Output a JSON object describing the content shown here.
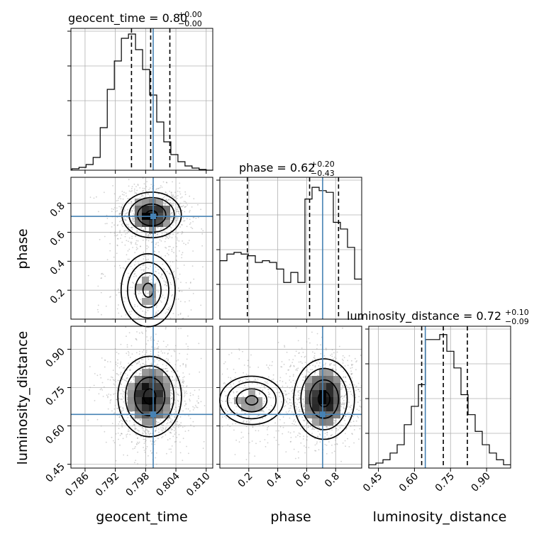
{
  "chart_data": {
    "type": "corner",
    "parameters": [
      "geocent_time",
      "phase",
      "luminosity_distance"
    ],
    "truths": {
      "geocent_time": 0.7995,
      "phase": 0.71,
      "luminosity_distance": 0.645
    },
    "colors": {
      "truth": "#4682b4",
      "hist": "#000000",
      "grid": "#b0b0b0",
      "scatter": "#9a9a9a"
    },
    "grid": true,
    "panels": {
      "hist_geocent_time": {
        "title_main": "geocent_time = 0.80",
        "title_sup": "+0.00",
        "title_sub": "−0.00",
        "xlim": [
          0.7832,
          0.8113
        ],
        "bin_edges": [
          0.7834,
          0.7848,
          0.7862,
          0.7876,
          0.789,
          0.7904,
          0.7918,
          0.7932,
          0.7946,
          0.796,
          0.7974,
          0.7988,
          0.8002,
          0.8016,
          0.803,
          0.8044,
          0.8058,
          0.8072,
          0.8086,
          0.81,
          0.8114
        ],
        "counts": [
          1,
          2,
          4,
          9,
          30,
          57,
          77,
          93,
          96,
          85,
          71,
          53,
          34,
          20,
          11,
          6,
          3,
          1.5,
          0.5,
          0
        ],
        "quantile_lines": [
          0.7952,
          0.799,
          0.8028
        ],
        "ymax": 100
      },
      "hist_phase": {
        "title_main": "phase = 0.62",
        "title_sup": "+0.20",
        "title_sub": "−0.43",
        "xlim": [
          0.0,
          0.98
        ],
        "bin_edges": [
          0.0,
          0.049,
          0.098,
          0.147,
          0.196,
          0.245,
          0.294,
          0.343,
          0.392,
          0.441,
          0.49,
          0.539,
          0.588,
          0.637,
          0.686,
          0.735,
          0.784,
          0.833,
          0.882,
          0.931,
          0.98
        ],
        "counts": [
          35,
          39,
          40,
          39,
          38,
          34,
          35,
          34,
          30,
          22,
          28,
          22,
          72,
          79,
          77,
          76,
          58,
          54,
          43,
          24
        ],
        "quantile_lines": [
          0.19,
          0.62,
          0.82
        ],
        "ymax": 85
      },
      "hist_luminosity_distance": {
        "title_main": "luminosity_distance = 0.72",
        "title_sup": "+0.10",
        "title_sub": "−0.09",
        "xlim": [
          0.41,
          1.0
        ],
        "bin_edges": [
          0.41,
          0.4395,
          0.469,
          0.4985,
          0.528,
          0.5575,
          0.587,
          0.6165,
          0.646,
          0.6755,
          0.705,
          0.7345,
          0.764,
          0.7935,
          0.823,
          0.8525,
          0.882,
          0.9115,
          0.941,
          0.9705,
          1.0
        ],
        "counts": [
          2,
          3,
          5,
          9,
          14,
          26,
          37,
          50,
          77,
          77,
          80,
          70,
          60,
          44,
          32,
          22,
          14,
          9,
          5,
          2
        ],
        "quantile_lines": [
          0.63,
          0.72,
          0.82
        ],
        "ymax": 85
      },
      "contour_phase_vs_geocent_time": {
        "xlim": [
          0.7832,
          0.8113
        ],
        "ylim": [
          0.0,
          0.98
        ],
        "modes": [
          {
            "mx": 0.7992,
            "my": 0.72,
            "sx": 0.0028,
            "sy": 0.075,
            "w": 1.0
          },
          {
            "mx": 0.7985,
            "my": 0.2,
            "sx": 0.0034,
            "sy": 0.16,
            "w": 0.42
          }
        ]
      },
      "contour_ld_vs_geocent_time": {
        "xlim": [
          0.7832,
          0.8113
        ],
        "ylim": [
          0.435,
          0.99
        ],
        "modes": [
          {
            "mx": 0.7988,
            "my": 0.715,
            "sx": 0.003,
            "sy": 0.075,
            "w": 1.0
          }
        ]
      },
      "contour_ld_vs_phase": {
        "xlim": [
          0.0,
          0.98
        ],
        "ylim": [
          0.435,
          0.99
        ],
        "modes": [
          {
            "mx": 0.72,
            "my": 0.705,
            "sx": 0.1,
            "sy": 0.075,
            "w": 1.0
          },
          {
            "mx": 0.22,
            "my": 0.7,
            "sx": 0.14,
            "sy": 0.06,
            "w": 0.42
          }
        ]
      }
    },
    "ticks": {
      "geocent_time": [
        "0.786",
        "0.792",
        "0.798",
        "0.804",
        "0.810"
      ],
      "geocent_time_values": [
        0.786,
        0.792,
        0.798,
        0.804,
        0.81
      ],
      "phase_x": [
        "0.2",
        "0.4",
        "0.6",
        "0.8"
      ],
      "phase_x_values": [
        0.2,
        0.4,
        0.6,
        0.8
      ],
      "phase_y": [
        "0.2",
        "0.4",
        "0.6",
        "0.8"
      ],
      "phase_y_values": [
        0.2,
        0.4,
        0.6,
        0.8
      ],
      "luminosity_distance_x": [
        "0.45",
        "0.60",
        "0.75",
        "0.90"
      ],
      "luminosity_distance_x_values": [
        0.45,
        0.6,
        0.75,
        0.9
      ],
      "luminosity_distance_y": [
        "0.45",
        "0.60",
        "0.75",
        "0.90"
      ],
      "luminosity_distance_y_values": [
        0.45,
        0.6,
        0.75,
        0.9
      ]
    },
    "labels": {
      "x_col1": "geocent_time",
      "x_col2": "phase",
      "x_col3": "luminosity_distance",
      "y_row2": "phase",
      "y_row3": "luminosity_distance"
    }
  }
}
